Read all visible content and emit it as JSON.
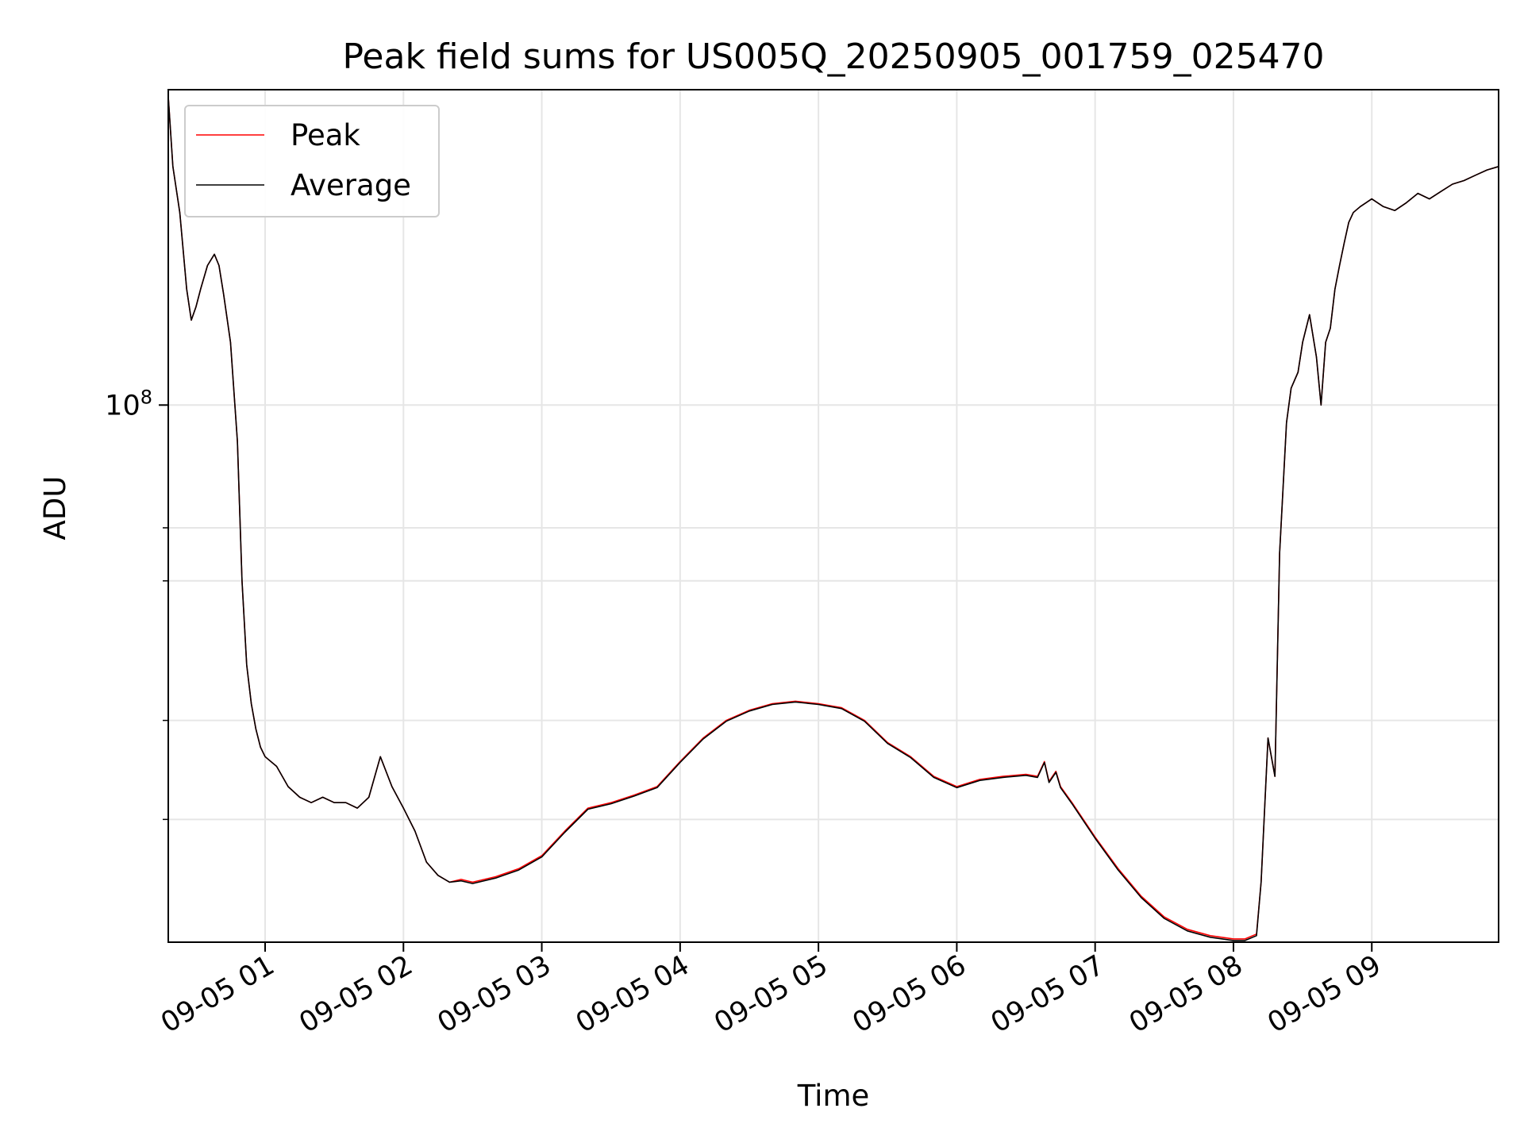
{
  "chart_data": {
    "type": "line",
    "title": "Peak field sums for US005Q_20250905_001759_025470",
    "xlabel": "Time",
    "ylabel": "ADU",
    "yscale": "log",
    "grid": true,
    "legend_position": "upper-left",
    "xlim": [
      "2025-09-05 00:18",
      "2025-09-05 09:55"
    ],
    "ylim": [
      21000000,
      250000000
    ],
    "x_ticks": [
      "09-05 01",
      "09-05 02",
      "09-05 03",
      "09-05 04",
      "09-05 05",
      "09-05 06",
      "09-05 07",
      "09-05 08",
      "09-05 09"
    ],
    "y_tick_major": {
      "value": 100000000,
      "base": "10",
      "exponent": "8"
    },
    "y_minor_ticks": [
      30000000,
      40000000,
      60000000,
      70000000
    ],
    "series": [
      {
        "name": "Peak",
        "color": "#ff0000",
        "x": [
          "2025-09-05 00:18",
          "2025-09-05 00:20",
          "2025-09-05 00:23",
          "2025-09-05 00:26",
          "2025-09-05 00:28",
          "2025-09-05 00:30",
          "2025-09-05 00:32",
          "2025-09-05 00:35",
          "2025-09-05 00:38",
          "2025-09-05 00:40",
          "2025-09-05 00:42",
          "2025-09-05 00:45",
          "2025-09-05 00:48",
          "2025-09-05 00:50",
          "2025-09-05 00:52",
          "2025-09-05 00:54",
          "2025-09-05 00:56",
          "2025-09-05 00:58",
          "2025-09-05 01:00",
          "2025-09-05 01:05",
          "2025-09-05 01:10",
          "2025-09-05 01:15",
          "2025-09-05 01:20",
          "2025-09-05 01:25",
          "2025-09-05 01:30",
          "2025-09-05 01:35",
          "2025-09-05 01:40",
          "2025-09-05 01:45",
          "2025-09-05 01:50",
          "2025-09-05 01:55",
          "2025-09-05 02:00",
          "2025-09-05 02:05",
          "2025-09-05 02:10",
          "2025-09-05 02:15",
          "2025-09-05 02:20",
          "2025-09-05 02:25",
          "2025-09-05 02:30",
          "2025-09-05 02:40",
          "2025-09-05 02:50",
          "2025-09-05 03:00",
          "2025-09-05 03:10",
          "2025-09-05 03:20",
          "2025-09-05 03:30",
          "2025-09-05 03:40",
          "2025-09-05 03:50",
          "2025-09-05 04:00",
          "2025-09-05 04:10",
          "2025-09-05 04:20",
          "2025-09-05 04:30",
          "2025-09-05 04:40",
          "2025-09-05 04:50",
          "2025-09-05 05:00",
          "2025-09-05 05:10",
          "2025-09-05 05:20",
          "2025-09-05 05:30",
          "2025-09-05 05:40",
          "2025-09-05 05:50",
          "2025-09-05 06:00",
          "2025-09-05 06:10",
          "2025-09-05 06:20",
          "2025-09-05 06:30",
          "2025-09-05 06:35",
          "2025-09-05 06:38",
          "2025-09-05 06:40",
          "2025-09-05 06:43",
          "2025-09-05 06:45",
          "2025-09-05 06:50",
          "2025-09-05 07:00",
          "2025-09-05 07:10",
          "2025-09-05 07:20",
          "2025-09-05 07:30",
          "2025-09-05 07:40",
          "2025-09-05 07:50",
          "2025-09-05 08:00",
          "2025-09-05 08:05",
          "2025-09-05 08:10",
          "2025-09-05 08:12",
          "2025-09-05 08:15",
          "2025-09-05 08:18",
          "2025-09-05 08:20",
          "2025-09-05 08:23",
          "2025-09-05 08:25",
          "2025-09-05 08:28",
          "2025-09-05 08:30",
          "2025-09-05 08:33",
          "2025-09-05 08:36",
          "2025-09-05 08:38",
          "2025-09-05 08:40",
          "2025-09-05 08:42",
          "2025-09-05 08:44",
          "2025-09-05 08:46",
          "2025-09-05 08:48",
          "2025-09-05 08:50",
          "2025-09-05 08:52",
          "2025-09-05 08:55",
          "2025-09-05 09:00",
          "2025-09-05 09:05",
          "2025-09-05 09:10",
          "2025-09-05 09:15",
          "2025-09-05 09:20",
          "2025-09-05 09:25",
          "2025-09-05 09:30",
          "2025-09-05 09:35",
          "2025-09-05 09:40",
          "2025-09-05 09:45",
          "2025-09-05 09:50",
          "2025-09-05 09:55"
        ],
        "y": [
          245000000,
          200000000,
          175000000,
          140000000,
          128000000,
          133000000,
          140000000,
          150000000,
          155000000,
          150000000,
          138000000,
          120000000,
          90000000,
          60000000,
          47000000,
          42000000,
          39000000,
          37000000,
          36000000,
          35000000,
          33000000,
          32000000,
          31500000,
          32000000,
          31500000,
          31500000,
          31000000,
          32000000,
          36000000,
          33000000,
          31000000,
          29000000,
          26500000,
          25500000,
          25000000,
          25200000,
          25000000,
          25400000,
          26000000,
          27000000,
          29000000,
          31000000,
          31500000,
          32200000,
          33000000,
          35500000,
          38000000,
          40000000,
          41200000,
          42000000,
          42300000,
          42000000,
          41500000,
          40000000,
          37500000,
          36000000,
          34000000,
          33000000,
          33700000,
          34000000,
          34200000,
          34000000,
          35500000,
          33500000,
          34500000,
          33000000,
          31500000,
          28500000,
          26000000,
          24000000,
          22600000,
          21800000,
          21400000,
          21200000,
          21200000,
          21500000,
          25000000,
          38000000,
          34000000,
          65000000,
          95000000,
          105000000,
          110000000,
          120000000,
          130000000,
          115000000,
          100000000,
          120000000,
          125000000,
          140000000,
          150000000,
          160000000,
          170000000,
          175000000,
          178000000,
          182000000,
          178000000,
          176000000,
          180000000,
          185000000,
          182000000,
          186000000,
          190000000,
          192000000,
          195000000,
          198000000,
          200000000
        ]
      },
      {
        "name": "Average",
        "color": "#000000",
        "x": [
          "2025-09-05 00:18",
          "2025-09-05 00:20",
          "2025-09-05 00:23",
          "2025-09-05 00:26",
          "2025-09-05 00:28",
          "2025-09-05 00:30",
          "2025-09-05 00:32",
          "2025-09-05 00:35",
          "2025-09-05 00:38",
          "2025-09-05 00:40",
          "2025-09-05 00:42",
          "2025-09-05 00:45",
          "2025-09-05 00:48",
          "2025-09-05 00:50",
          "2025-09-05 00:52",
          "2025-09-05 00:54",
          "2025-09-05 00:56",
          "2025-09-05 00:58",
          "2025-09-05 01:00",
          "2025-09-05 01:05",
          "2025-09-05 01:10",
          "2025-09-05 01:15",
          "2025-09-05 01:20",
          "2025-09-05 01:25",
          "2025-09-05 01:30",
          "2025-09-05 01:35",
          "2025-09-05 01:40",
          "2025-09-05 01:45",
          "2025-09-05 01:50",
          "2025-09-05 01:55",
          "2025-09-05 02:00",
          "2025-09-05 02:05",
          "2025-09-05 02:10",
          "2025-09-05 02:15",
          "2025-09-05 02:20",
          "2025-09-05 02:25",
          "2025-09-05 02:30",
          "2025-09-05 02:40",
          "2025-09-05 02:50",
          "2025-09-05 03:00",
          "2025-09-05 03:10",
          "2025-09-05 03:20",
          "2025-09-05 03:30",
          "2025-09-05 03:40",
          "2025-09-05 03:50",
          "2025-09-05 04:00",
          "2025-09-05 04:10",
          "2025-09-05 04:20",
          "2025-09-05 04:30",
          "2025-09-05 04:40",
          "2025-09-05 04:50",
          "2025-09-05 05:00",
          "2025-09-05 05:10",
          "2025-09-05 05:20",
          "2025-09-05 05:30",
          "2025-09-05 05:40",
          "2025-09-05 05:50",
          "2025-09-05 06:00",
          "2025-09-05 06:10",
          "2025-09-05 06:20",
          "2025-09-05 06:30",
          "2025-09-05 06:35",
          "2025-09-05 06:38",
          "2025-09-05 06:40",
          "2025-09-05 06:43",
          "2025-09-05 06:45",
          "2025-09-05 06:50",
          "2025-09-05 07:00",
          "2025-09-05 07:10",
          "2025-09-05 07:20",
          "2025-09-05 07:30",
          "2025-09-05 07:40",
          "2025-09-05 07:50",
          "2025-09-05 08:00",
          "2025-09-05 08:05",
          "2025-09-05 08:10",
          "2025-09-05 08:12",
          "2025-09-05 08:15",
          "2025-09-05 08:18",
          "2025-09-05 08:20",
          "2025-09-05 08:23",
          "2025-09-05 08:25",
          "2025-09-05 08:28",
          "2025-09-05 08:30",
          "2025-09-05 08:33",
          "2025-09-05 08:36",
          "2025-09-05 08:38",
          "2025-09-05 08:40",
          "2025-09-05 08:42",
          "2025-09-05 08:44",
          "2025-09-05 08:46",
          "2025-09-05 08:48",
          "2025-09-05 08:50",
          "2025-09-05 08:52",
          "2025-09-05 08:55",
          "2025-09-05 09:00",
          "2025-09-05 09:05",
          "2025-09-05 09:10",
          "2025-09-05 09:15",
          "2025-09-05 09:20",
          "2025-09-05 09:25",
          "2025-09-05 09:30",
          "2025-09-05 09:35",
          "2025-09-05 09:40",
          "2025-09-05 09:45",
          "2025-09-05 09:50",
          "2025-09-05 09:55"
        ],
        "y": [
          245000000,
          200000000,
          175000000,
          140000000,
          128000000,
          133000000,
          140000000,
          150000000,
          155000000,
          150000000,
          138000000,
          120000000,
          90000000,
          60000000,
          47000000,
          42000000,
          39000000,
          37000000,
          36000000,
          35000000,
          33000000,
          32000000,
          31500000,
          32000000,
          31500000,
          31500000,
          31000000,
          32000000,
          36000000,
          33000000,
          31000000,
          29000000,
          26500000,
          25500000,
          25000000,
          25100000,
          24900000,
          25300000,
          25900000,
          26900000,
          28900000,
          30900000,
          31400000,
          32100000,
          32900000,
          35400000,
          37900000,
          39900000,
          41100000,
          41900000,
          42200000,
          41900000,
          41400000,
          39900000,
          37400000,
          35900000,
          33900000,
          32900000,
          33600000,
          33900000,
          34100000,
          33900000,
          35400000,
          33400000,
          34400000,
          32900000,
          31400000,
          28400000,
          25900000,
          23900000,
          22500000,
          21700000,
          21300000,
          21100000,
          21100000,
          21400000,
          25000000,
          38000000,
          34000000,
          65000000,
          95000000,
          105000000,
          110000000,
          120000000,
          130000000,
          115000000,
          100000000,
          120000000,
          125000000,
          140000000,
          150000000,
          160000000,
          170000000,
          175000000,
          178000000,
          182000000,
          178000000,
          176000000,
          180000000,
          185000000,
          182000000,
          186000000,
          190000000,
          192000000,
          195000000,
          198000000,
          200000000
        ]
      }
    ]
  }
}
